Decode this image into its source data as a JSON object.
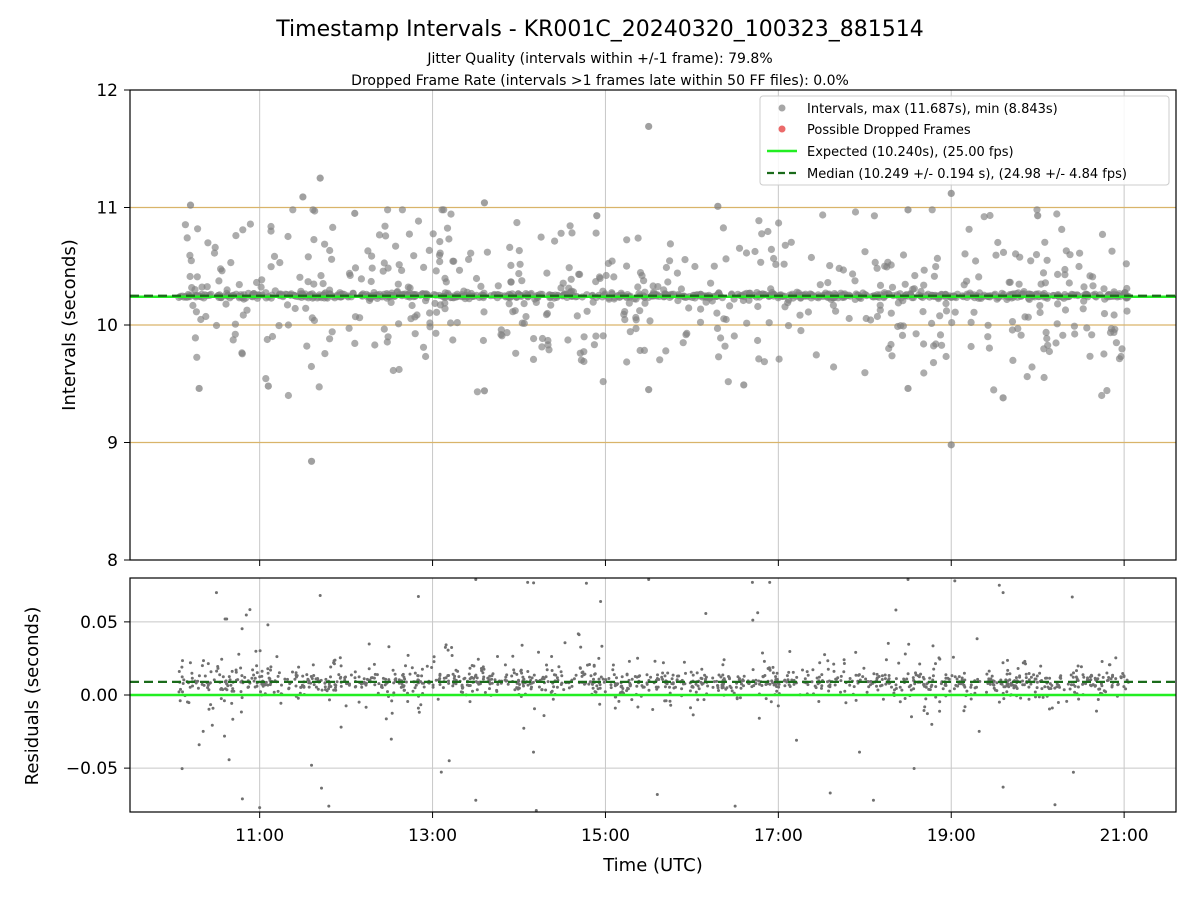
{
  "chart_data": [
    {
      "type": "scatter",
      "panel": "intervals",
      "title": "Timestamp Intervals - KR001C_20240320_100323_881514",
      "subtitle_lines": [
        "Jitter Quality (intervals within +/-1 frame): 79.8%",
        "Dropped Frame Rate (intervals >1 frames late within 50 FF files): 0.0%"
      ],
      "ylabel": "Intervals (seconds)",
      "ylim": [
        8,
        12
      ],
      "yticks": [
        "8",
        "9",
        "10",
        "11",
        "12"
      ],
      "xlim_hours": [
        9.5,
        21.6
      ],
      "grid": true,
      "frame_lines_y": [
        9,
        10,
        11
      ],
      "legend_position": "top-right",
      "legend": [
        "Intervals, max (11.687s), min (8.843s)",
        "Possible Dropped Frames",
        "Expected (10.240s), (25.00 fps)",
        "Median (10.249 +/- 0.194 s), (24.98 +/- 4.84 fps)"
      ],
      "expected_value": 10.24,
      "median_value": 10.249,
      "max_value": 11.687,
      "min_value": 8.843,
      "series": [
        {
          "name": "Intervals, max (11.687s), min (8.843s)",
          "color": "#808080",
          "points": [
            [
              11.7,
              11.25
            ],
            [
              15.5,
              11.69
            ],
            [
              11.5,
              11.09
            ],
            [
              11.6,
              8.84
            ],
            [
              19.0,
              8.98
            ],
            [
              19.0,
              11.12
            ],
            [
              10.2,
              11.02
            ],
            [
              13.6,
              11.04
            ],
            [
              16.3,
              11.01
            ],
            [
              18.5,
              10.98
            ],
            [
              20.0,
              10.93
            ],
            [
              12.1,
              10.95
            ],
            [
              14.9,
              10.93
            ],
            [
              10.3,
              9.46
            ],
            [
              19.6,
              9.38
            ],
            [
              13.6,
              9.44
            ],
            [
              15.5,
              9.45
            ],
            [
              18.5,
              9.46
            ],
            [
              11.1,
              9.48
            ],
            [
              16.6,
              9.49
            ]
          ]
        },
        {
          "name": "Possible Dropped Frames",
          "color": "#e85050",
          "points": []
        }
      ],
      "scatter_band": {
        "x_start": 10.05,
        "x_end": 21.05,
        "median": 10.249,
        "spread_sd": 0.35,
        "count": 1200
      }
    },
    {
      "type": "scatter",
      "panel": "residuals",
      "xlabel": "Time (UTC)",
      "ylabel": "Residuals (seconds)",
      "ylim": [
        -0.08,
        0.08
      ],
      "yticks": [
        "−0.05",
        "0.00",
        "0.05"
      ],
      "xticks": [
        "11:00",
        "13:00",
        "15:00",
        "17:00",
        "19:00",
        "21:00"
      ],
      "xtick_hours": [
        11,
        13,
        15,
        17,
        19,
        21
      ],
      "grid": true,
      "expected_residual": 0.0,
      "median_residual": 0.009,
      "series": [
        {
          "name": "Residuals",
          "color": "#707070",
          "points": [
            [
              10.5,
              0.07
            ],
            [
              10.6,
              0.052
            ],
            [
              11.7,
              0.068
            ],
            [
              13.5,
              0.079
            ],
            [
              14.1,
              0.077
            ],
            [
              15.5,
              0.079
            ],
            [
              16.7,
              0.077
            ],
            [
              16.9,
              0.077
            ],
            [
              18.5,
              0.079
            ],
            [
              19.6,
              0.07
            ],
            [
              20.4,
              0.067
            ],
            [
              10.3,
              -0.034
            ],
            [
              10.8,
              -0.071
            ],
            [
              11.0,
              -0.077
            ],
            [
              11.6,
              -0.048
            ],
            [
              11.8,
              -0.076
            ],
            [
              13.5,
              -0.072
            ],
            [
              14.2,
              -0.079
            ],
            [
              15.6,
              -0.068
            ],
            [
              16.5,
              -0.076
            ],
            [
              17.6,
              -0.067
            ],
            [
              18.1,
              -0.072
            ],
            [
              19.6,
              -0.063
            ],
            [
              20.2,
              -0.075
            ]
          ]
        }
      ],
      "scatter_band": {
        "x_start": 10.05,
        "x_end": 21.05,
        "median": 0.009,
        "spread_sd": 0.016,
        "count": 1300
      }
    }
  ],
  "colors": {
    "scatter_points": "#808080",
    "dropped_frames": "#e85050",
    "expected_line": "#22ee22",
    "median_line": "#1a6b1a",
    "frame_lines": "#d9b46a",
    "grid": "#c8c8c8"
  }
}
